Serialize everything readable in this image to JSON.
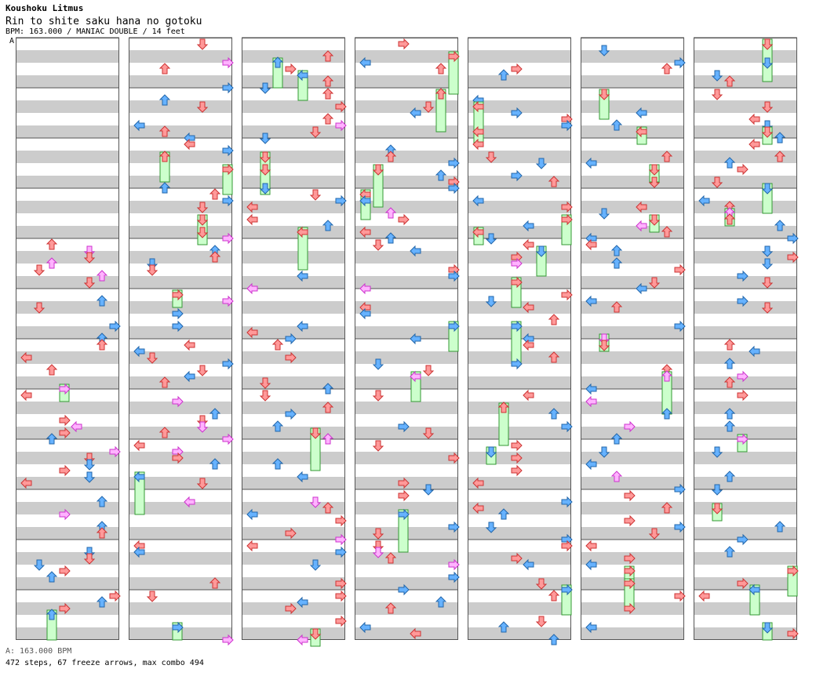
{
  "header": {
    "artist": "Koushoku Litmus",
    "title": "Rin to shite saku hana no gotoku",
    "meta": "BPM: 163.000 / MANIAC DOUBLE / 14 feet",
    "bpm_marker": "A"
  },
  "footer": {
    "bpm_line": "A: 163.000 BPM",
    "stats": "472 steps, 67 freeze arrows, max combo 494"
  },
  "colors": {
    "stripe": "#cccccc",
    "background": "#ffffff",
    "border": "#555555",
    "arrow_red": "#ff9999",
    "arrow_blue": "#66b2ff",
    "arrow_pink": "#ffb3ff",
    "freeze_green": "#ccffcc"
  },
  "chart_data": {
    "type": "step-chart",
    "columns": 7,
    "measures_per_column": 12,
    "lanes": 8,
    "arrow_glyphs": [
      "left-arrow-icon",
      "down-arrow-icon",
      "up-arrow-icon",
      "right-arrow-icon"
    ],
    "note_counts": {
      "steps": 472,
      "freeze_arrows": 67,
      "max_combo": 494
    }
  }
}
